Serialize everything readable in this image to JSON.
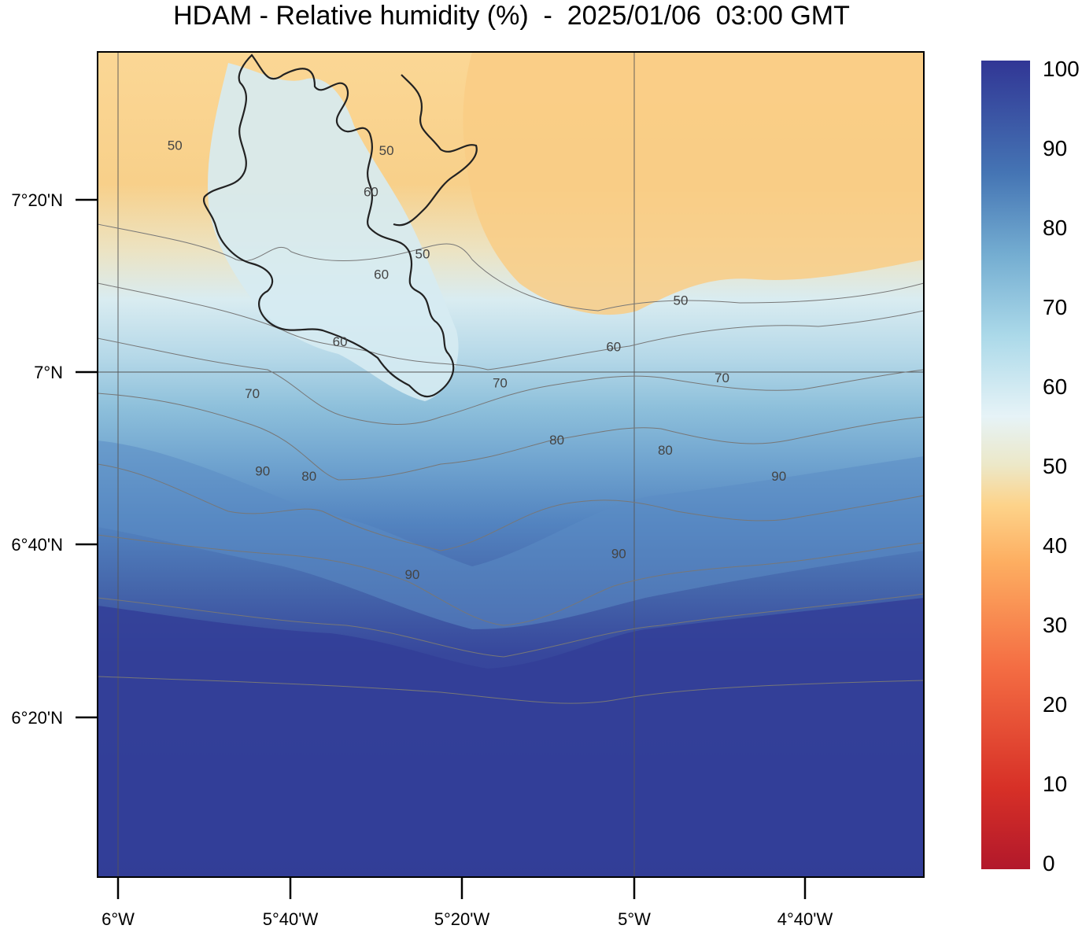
{
  "title": "HDAM - Relative humidity (%)  -  2025/01/06  03:00 GMT",
  "map": {
    "lat_ticks": [
      "7°20'N",
      "7°N",
      "6°40'N",
      "6°20'N"
    ],
    "lon_ticks": [
      "6°W",
      "5°40'W",
      "5°20'W",
      "5°W",
      "4°40'W"
    ],
    "contour_labels": [
      {
        "text": "50",
        "lon": -5.89,
        "lat": 7.43
      },
      {
        "text": "50",
        "lon": -5.48,
        "lat": 7.42
      },
      {
        "text": "60",
        "lon": -5.51,
        "lat": 7.34
      },
      {
        "text": "50",
        "lon": -5.41,
        "lat": 7.22
      },
      {
        "text": "60",
        "lon": -5.49,
        "lat": 7.18
      },
      {
        "text": "50",
        "lon": -4.91,
        "lat": 7.13
      },
      {
        "text": "60",
        "lon": -5.57,
        "lat": 7.05
      },
      {
        "text": "60",
        "lon": -5.04,
        "lat": 7.04
      },
      {
        "text": "70",
        "lon": -5.74,
        "lat": 6.95
      },
      {
        "text": "70",
        "lon": -5.26,
        "lat": 6.97
      },
      {
        "text": "70",
        "lon": -4.83,
        "lat": 6.98
      },
      {
        "text": "80",
        "lon": -5.15,
        "lat": 6.86
      },
      {
        "text": "80",
        "lon": -4.94,
        "lat": 6.84
      },
      {
        "text": "90",
        "lon": -5.72,
        "lat": 6.8
      },
      {
        "text": "80",
        "lon": -5.63,
        "lat": 6.79
      },
      {
        "text": "90",
        "lon": -4.72,
        "lat": 6.79
      },
      {
        "text": "90",
        "lon": -5.43,
        "lat": 6.6
      },
      {
        "text": "90",
        "lon": -5.03,
        "lat": 6.64
      }
    ]
  },
  "colorbar": {
    "range": [
      0,
      100
    ],
    "labels": [
      "100",
      "90",
      "80",
      "70",
      "60",
      "50",
      "40",
      "30",
      "20",
      "10",
      "0"
    ],
    "colors": [
      "#b2182b",
      "#d73027",
      "#f46d43",
      "#fdae61",
      "#fdd38a",
      "#ece8c8",
      "#e6f3f7",
      "#abd9e9",
      "#74add1",
      "#4575b4",
      "#313695"
    ]
  }
}
